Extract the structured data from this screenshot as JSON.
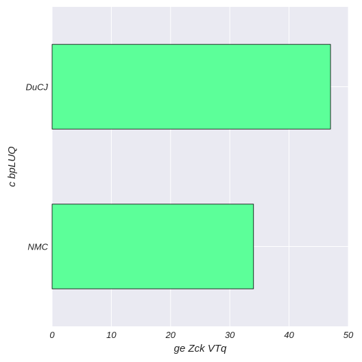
{
  "chart_data": {
    "type": "bar",
    "orientation": "horizontal",
    "categories": [
      "DuCJ",
      "NMC"
    ],
    "values": [
      47,
      34
    ],
    "xlabel": "ge Zck  VTq",
    "ylabel": "c bpLUQ",
    "xlim": [
      0,
      50
    ],
    "x_ticks": [
      0,
      10,
      20,
      30,
      40,
      50
    ],
    "grid": true,
    "colors": {
      "bar_fill": "#5cff99",
      "bar_edge": "#000000",
      "plot_background": "#eaeaf2",
      "grid": "#ffffff"
    }
  }
}
